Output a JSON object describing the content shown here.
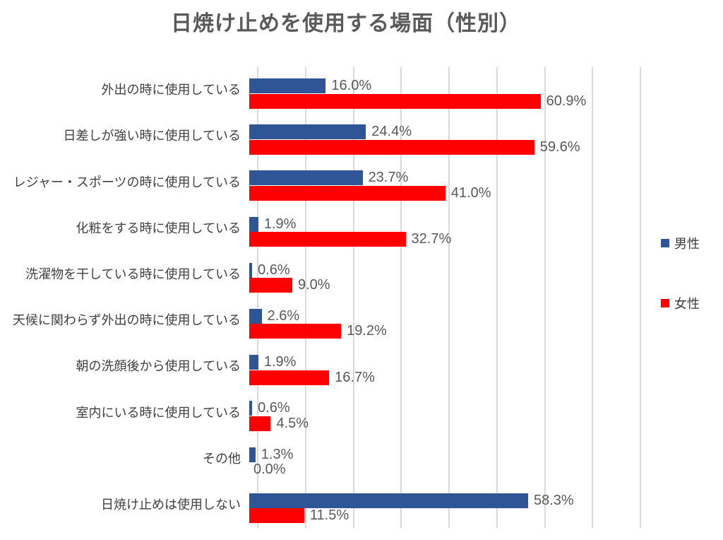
{
  "title": "日焼け止めを使用する場面（性別）",
  "colors": {
    "male_series": "#2F5597",
    "female_series": "#FF0000",
    "gridline": "#D9D9D9",
    "title_text": "#595959",
    "category_text": "#404040",
    "value_text": "#595959"
  },
  "legend": {
    "position": "right",
    "items": [
      {
        "label": "男性",
        "color": "#2F5597"
      },
      {
        "label": "女性",
        "color": "#FF0000"
      }
    ]
  },
  "chart_data": {
    "type": "bar",
    "orientation": "horizontal",
    "title": "日焼け止めを使用する場面（性別）",
    "categories": [
      "外出の時に使用している",
      "日差しが強い時に使用している",
      "レジャー・スポーツの時に使用している",
      "化粧をする時に使用している",
      "洗濯物を干している時に使用している",
      "天候に関わらず外出の時に使用している",
      "朝の洗顔後から使用している",
      "室内にいる時に使用している",
      "その他",
      "日焼け止めは使用しない"
    ],
    "series": [
      {
        "name": "男性",
        "color": "#2F5597",
        "values": [
          16.0,
          24.4,
          23.7,
          1.9,
          0.6,
          2.6,
          1.9,
          0.6,
          1.3,
          58.3
        ]
      },
      {
        "name": "女性",
        "color": "#FF0000",
        "values": [
          60.9,
          59.6,
          41.0,
          32.7,
          9.0,
          19.2,
          16.7,
          4.5,
          0.0,
          11.5
        ]
      }
    ],
    "value_suffix": "%",
    "value_decimals": 1,
    "xlabel": "",
    "ylabel": "",
    "xlim": [
      0,
      80
    ],
    "gridline_interval": 10,
    "grid": true,
    "data_labels": true,
    "legend_position": "right"
  }
}
